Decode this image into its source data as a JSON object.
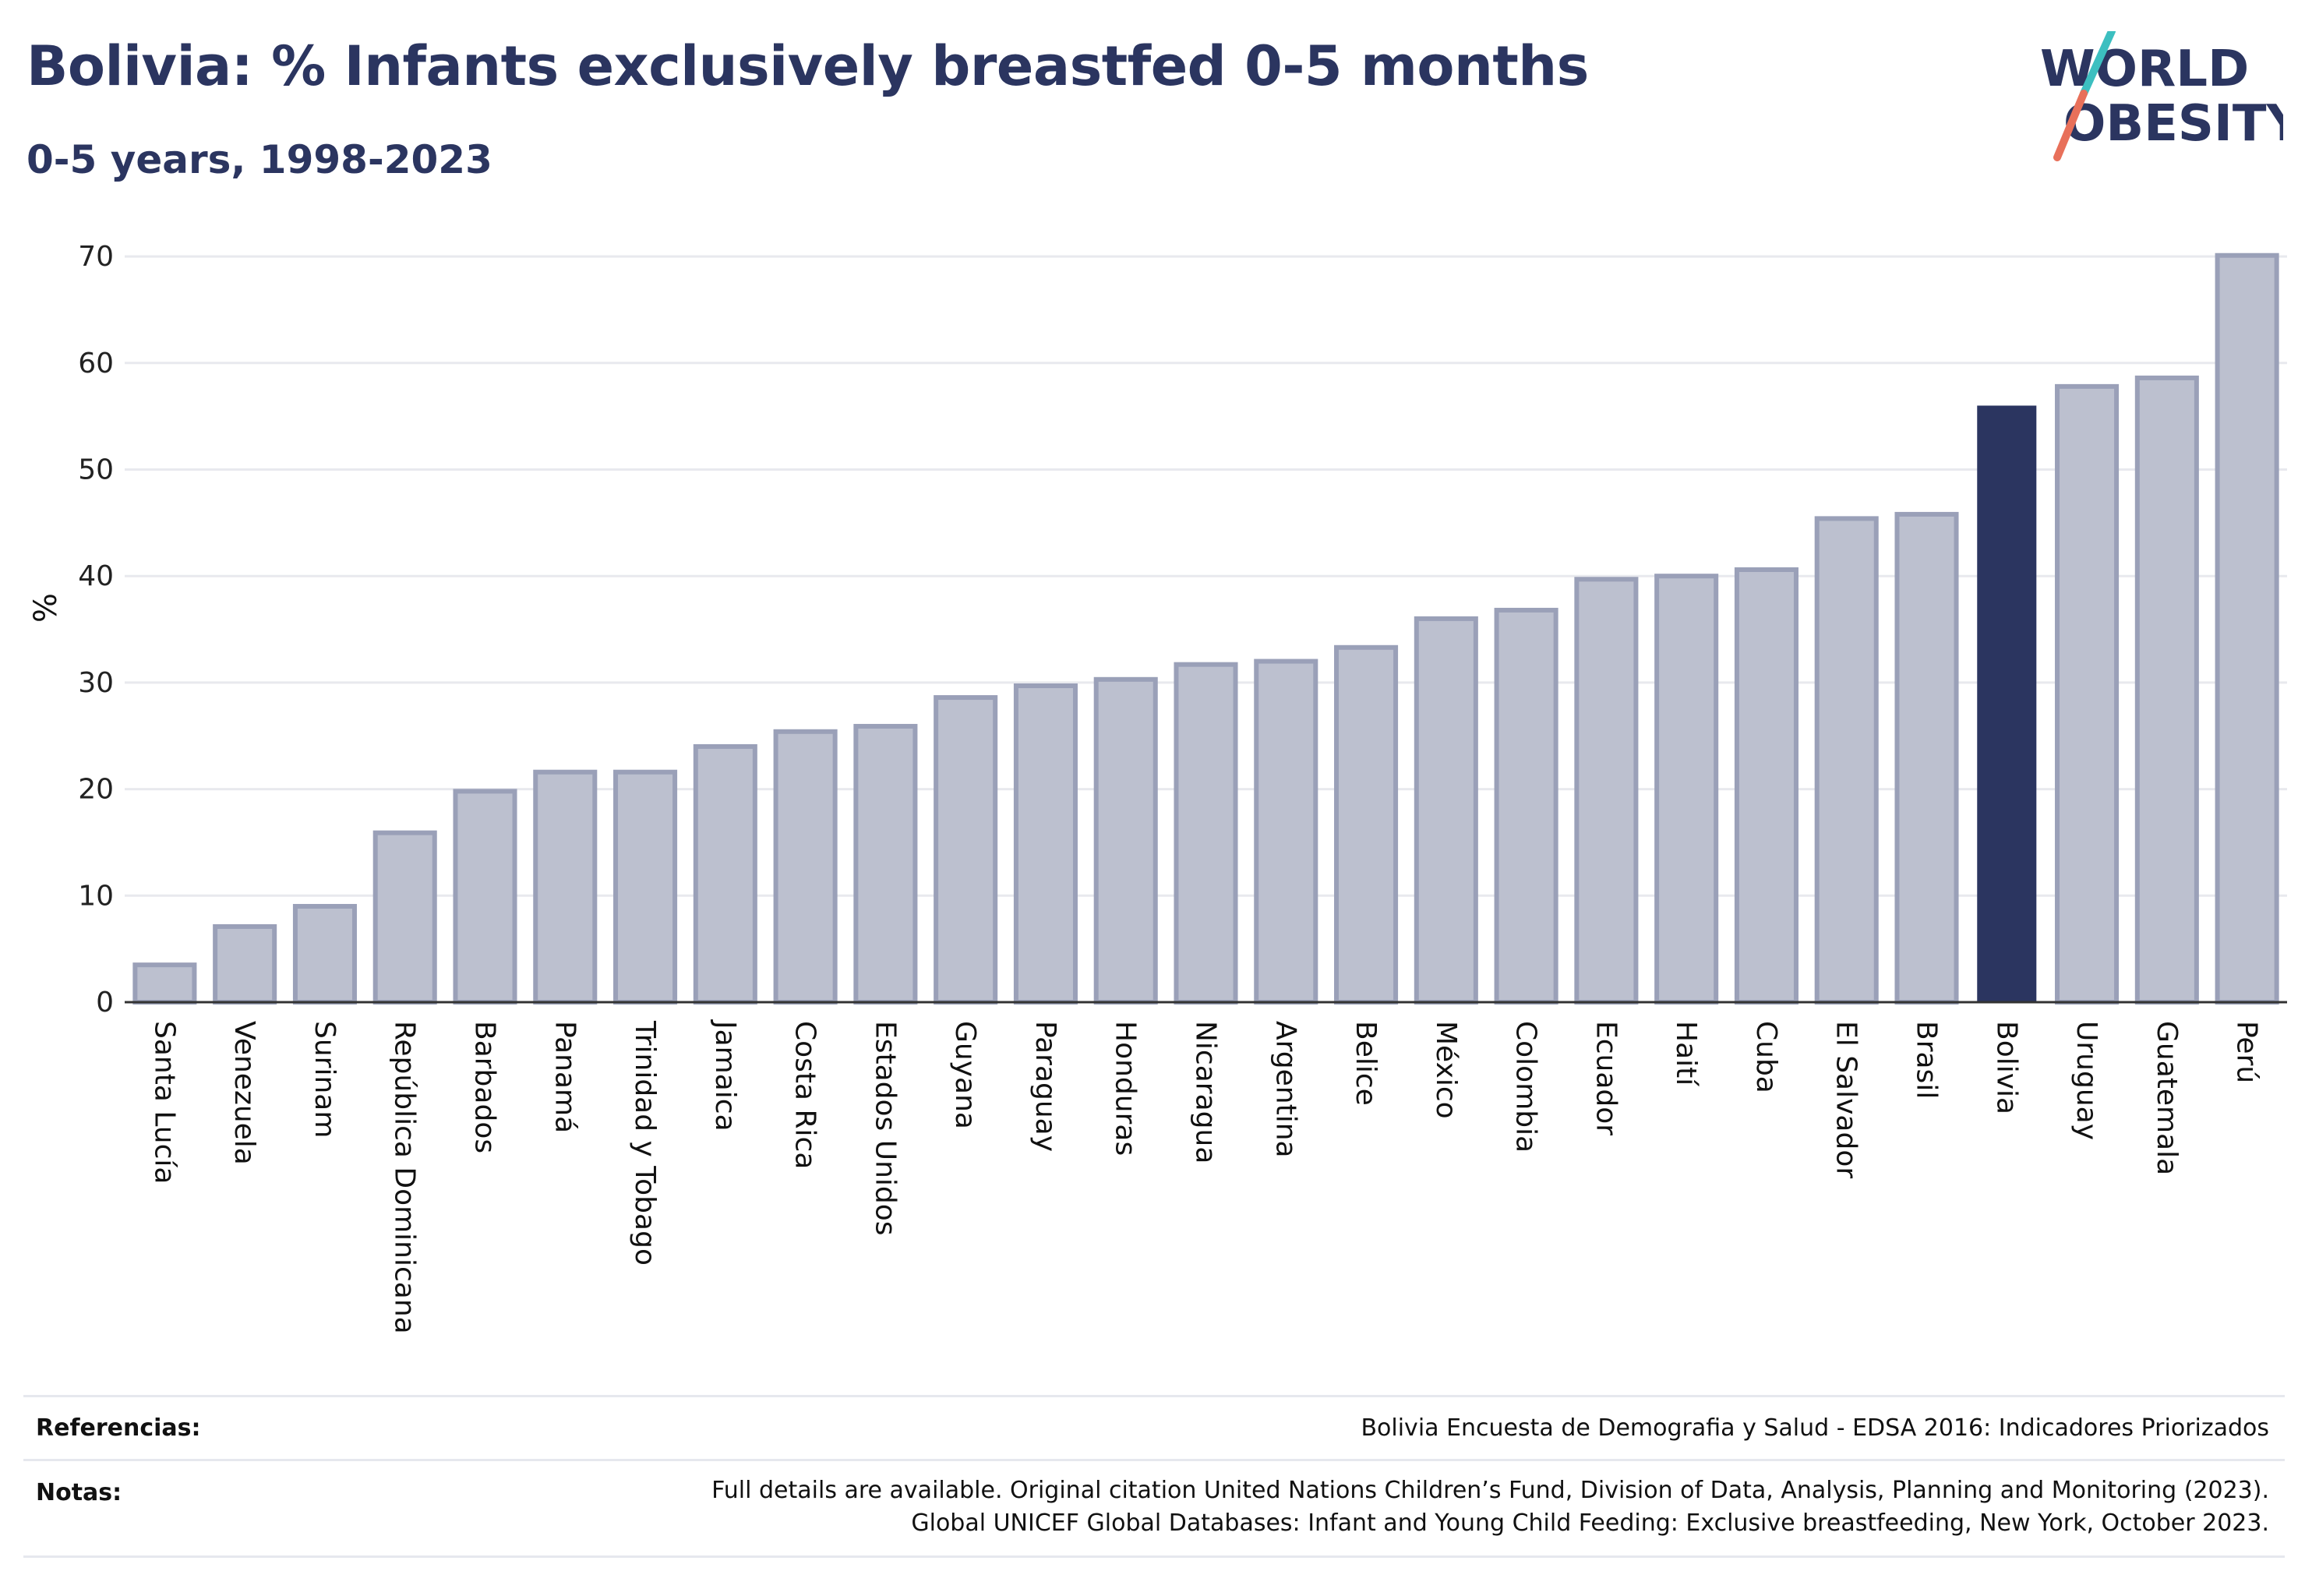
{
  "header": {
    "title": "Bolivia: % Infants exclusively breastfed 0-5 months",
    "subtitle": "0-5 years, 1998-2023"
  },
  "logo": {
    "line1": "WORLD",
    "line2": "OBESITY",
    "icon": "slash-mark-icon",
    "colors": {
      "text": "#2b3560",
      "accent_top": "#3cbfc0",
      "accent_bottom": "#e8705a"
    }
  },
  "colors": {
    "bar": "#bcc0cf",
    "bar_border": "#9aa0b8",
    "highlight": "#2b3560",
    "grid": "#e8e9ee",
    "axis": "#333333",
    "text": "#2b3560"
  },
  "chart_data": {
    "type": "bar",
    "ylabel": "%",
    "ylim": [
      0,
      70
    ],
    "yticks": [
      0,
      10,
      20,
      30,
      40,
      50,
      60,
      70
    ],
    "grid": true,
    "highlight": "Bolivia",
    "categories": [
      "Santa Lucía",
      "Venezuela",
      "Surinam",
      "República Dominicana",
      "Barbados",
      "Panamá",
      "Trinidad y Tobago",
      "Jamaica",
      "Costa Rica",
      "Estados Unidos",
      "Guyana",
      "Paraguay",
      "Honduras",
      "Nicaragua",
      "Argentina",
      "Belice",
      "México",
      "Colombia",
      "Ecuador",
      "Haití",
      "Cuba",
      "El Salvador",
      "Brasil",
      "Bolivia",
      "Uruguay",
      "Guatemala",
      "Perú"
    ],
    "values": [
      3.5,
      7.1,
      9.0,
      15.9,
      19.8,
      21.6,
      21.6,
      24.0,
      25.4,
      25.9,
      28.6,
      29.7,
      30.3,
      31.7,
      32.0,
      33.3,
      36.0,
      36.8,
      39.7,
      40.0,
      40.6,
      45.4,
      45.8,
      56.0,
      57.8,
      58.6,
      70.1
    ]
  },
  "footer": {
    "references_label": "Referencias:",
    "references_text": "Bolivia Encuesta de Demografia y Salud - EDSA 2016: Indicadores Priorizados",
    "notes_label": "Notas:",
    "notes_line1": "Full details are available. Original citation United Nations Children’s Fund, Division of Data, Analysis, Planning and Monitoring (2023).",
    "notes_line2": "Global UNICEF Global Databases: Infant and Young Child Feeding: Exclusive breastfeeding, New York, October 2023."
  }
}
